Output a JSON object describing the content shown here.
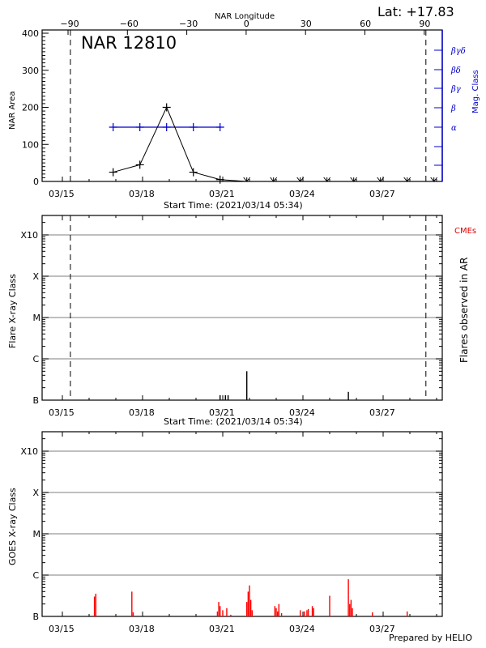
{
  "header": {
    "lat_label": "Lat: +17.83",
    "top_axis_title": "NAR Longitude",
    "region_title": "NAR 12810"
  },
  "footer": {
    "credit": "Prepared by HELIO"
  },
  "chart_data": [
    {
      "type": "line",
      "title": "NAR 12810",
      "xlabel": "Start Time: (2021/03/14 05:34)",
      "ylabel": "NAR Area",
      "ylabel_right": "Mag. Class",
      "xlabel_top": "NAR Longitude",
      "x_ticks": [
        "03/15",
        "03/18",
        "03/21",
        "03/24",
        "03/27"
      ],
      "top_ticks": [
        "-90",
        "-60",
        "-30",
        "0",
        "30",
        "60",
        "90"
      ],
      "y_ticks": [
        "0",
        "100",
        "200",
        "300",
        "400"
      ],
      "ylim": [
        0,
        400
      ],
      "right_ticks": [
        "α",
        "β",
        "βγ",
        "βδ",
        "βγδ"
      ],
      "limb_lines_days": [
        15.3,
        28.6
      ],
      "series": [
        {
          "name": "NAR Area",
          "color": "#000000",
          "x_days": [
            16.9,
            17.9,
            18.9,
            19.9,
            20.9,
            21.9,
            22.9,
            23.9,
            24.9,
            25.9,
            26.9,
            27.9,
            28.9
          ],
          "values": [
            25,
            45,
            200,
            25,
            5,
            0,
            0,
            0,
            0,
            0,
            0,
            0,
            0
          ]
        },
        {
          "name": "Mag. Class",
          "color": "#0000cc",
          "x_days": [
            16.9,
            17.9,
            18.9,
            19.9,
            20.9
          ],
          "values": [
            "α",
            "α",
            "α",
            "α",
            "α"
          ]
        }
      ]
    },
    {
      "type": "bar",
      "title": "",
      "xlabel": "Start Time: (2021/03/14 05:34)",
      "ylabel": "Flare X-ray Class",
      "ylabel_right": "Flares observed in AR",
      "right_legend": "CMEs",
      "x_ticks": [
        "03/15",
        "03/18",
        "03/21",
        "03/24",
        "03/27"
      ],
      "y_ticks": [
        "B",
        "C",
        "M",
        "X",
        "X10"
      ],
      "limb_lines_days": [
        15.3,
        28.6
      ],
      "flares": [
        {
          "day": 20.9,
          "level": 0.12
        },
        {
          "day": 21.2,
          "level": 0.12
        },
        {
          "day": 21.1,
          "level": 0.12
        },
        {
          "day": 21.9,
          "level": 0.7
        },
        {
          "day": 25.7,
          "level": 0.2
        }
      ]
    },
    {
      "type": "bar",
      "title": "",
      "xlabel": "",
      "ylabel": "GOES X-ray Class",
      "x_ticks": [
        "03/15",
        "03/18",
        "03/21",
        "03/24",
        "03/27"
      ],
      "y_ticks": [
        "B",
        "C",
        "M",
        "X",
        "X10"
      ],
      "color": "#ff0000",
      "spikes": [
        {
          "day": 16.2,
          "level": 0.48
        },
        {
          "day": 16.25,
          "level": 0.55
        },
        {
          "day": 17.6,
          "level": 0.6
        },
        {
          "day": 17.65,
          "level": 0.1
        },
        {
          "day": 20.8,
          "level": 0.12
        },
        {
          "day": 20.85,
          "level": 0.35
        },
        {
          "day": 20.9,
          "level": 0.25
        },
        {
          "day": 21.0,
          "level": 0.15
        },
        {
          "day": 21.15,
          "level": 0.2
        },
        {
          "day": 21.3,
          "level": 0.04
        },
        {
          "day": 21.9,
          "level": 0.35
        },
        {
          "day": 21.95,
          "level": 0.6
        },
        {
          "day": 22.0,
          "level": 0.75
        },
        {
          "day": 22.05,
          "level": 0.4
        },
        {
          "day": 22.1,
          "level": 0.15
        },
        {
          "day": 22.95,
          "level": 0.25
        },
        {
          "day": 23.0,
          "level": 0.2
        },
        {
          "day": 23.05,
          "level": 0.12
        },
        {
          "day": 23.1,
          "level": 0.3
        },
        {
          "day": 23.2,
          "level": 0.08
        },
        {
          "day": 23.9,
          "level": 0.15
        },
        {
          "day": 24.05,
          "level": 0.12
        },
        {
          "day": 24.15,
          "level": 0.15
        },
        {
          "day": 24.2,
          "level": 0.18
        },
        {
          "day": 24.35,
          "level": 0.25
        },
        {
          "day": 24.4,
          "level": 0.2
        },
        {
          "day": 25.0,
          "level": 0.5
        },
        {
          "day": 25.7,
          "level": 0.9
        },
        {
          "day": 25.75,
          "level": 0.3
        },
        {
          "day": 25.8,
          "level": 0.4
        },
        {
          "day": 25.85,
          "level": 0.2
        },
        {
          "day": 26.6,
          "level": 0.1
        },
        {
          "day": 27.9,
          "level": 0.12
        }
      ]
    }
  ]
}
